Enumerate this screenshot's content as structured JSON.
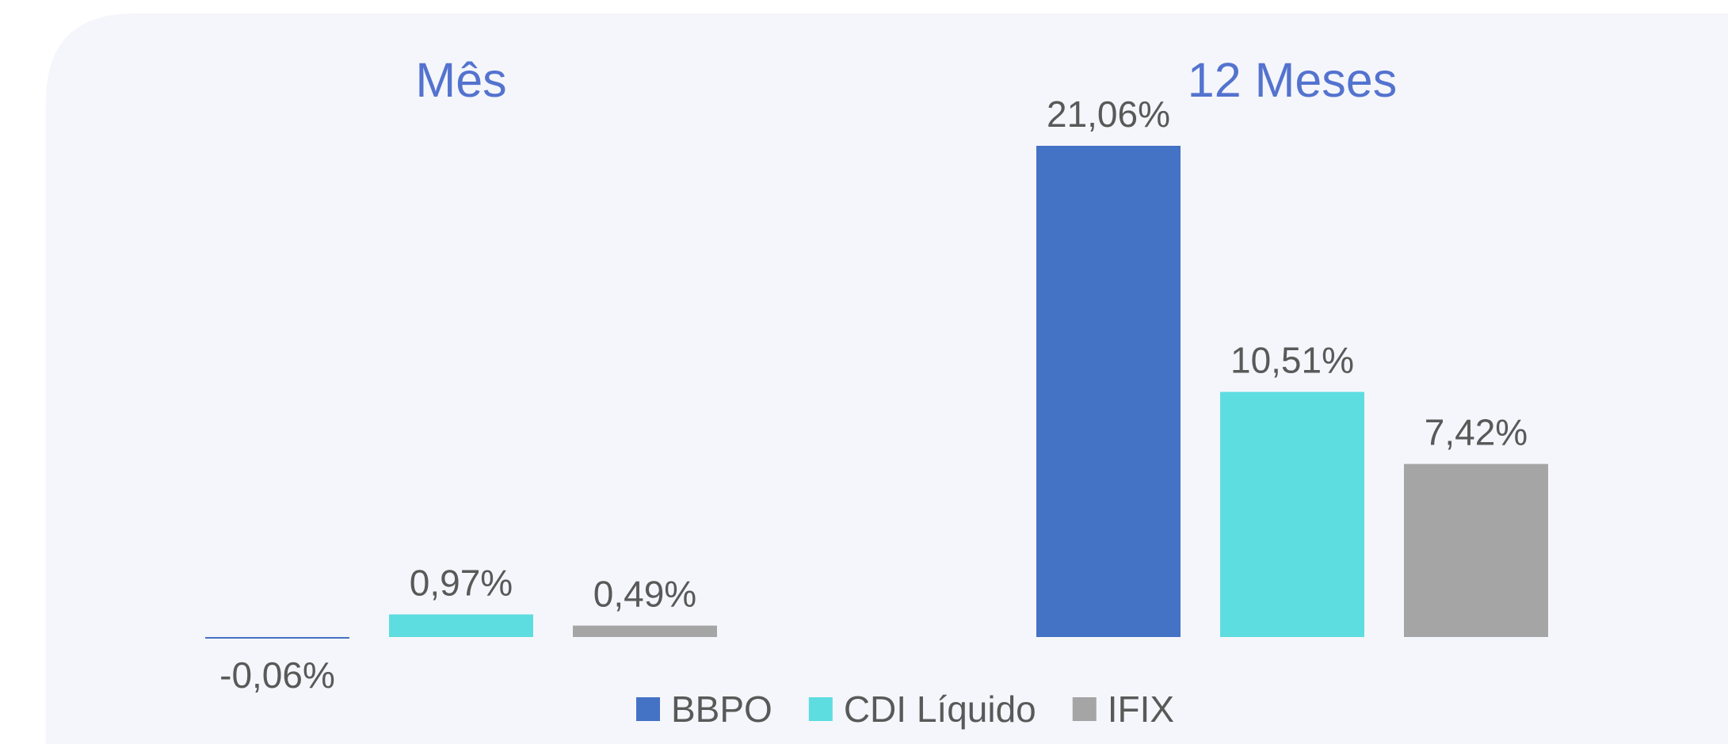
{
  "chart_data": {
    "type": "bar",
    "categories": [
      "Mês",
      "12 Meses"
    ],
    "series": [
      {
        "name": "BBPO",
        "color": "#4472c4",
        "values": [
          -0.06,
          21.06
        ],
        "value_labels": [
          "-0,06%",
          "21,06%"
        ]
      },
      {
        "name": "CDI Líquido",
        "color": "#5ddde0",
        "values": [
          0.97,
          10.51
        ],
        "value_labels": [
          "0,97%",
          "10,51%"
        ]
      },
      {
        "name": "IFIX",
        "color": "#a5a5a5",
        "values": [
          0.49,
          7.42
        ],
        "value_labels": [
          "0,49%",
          "7,42%"
        ]
      }
    ],
    "legend": "bottom"
  }
}
